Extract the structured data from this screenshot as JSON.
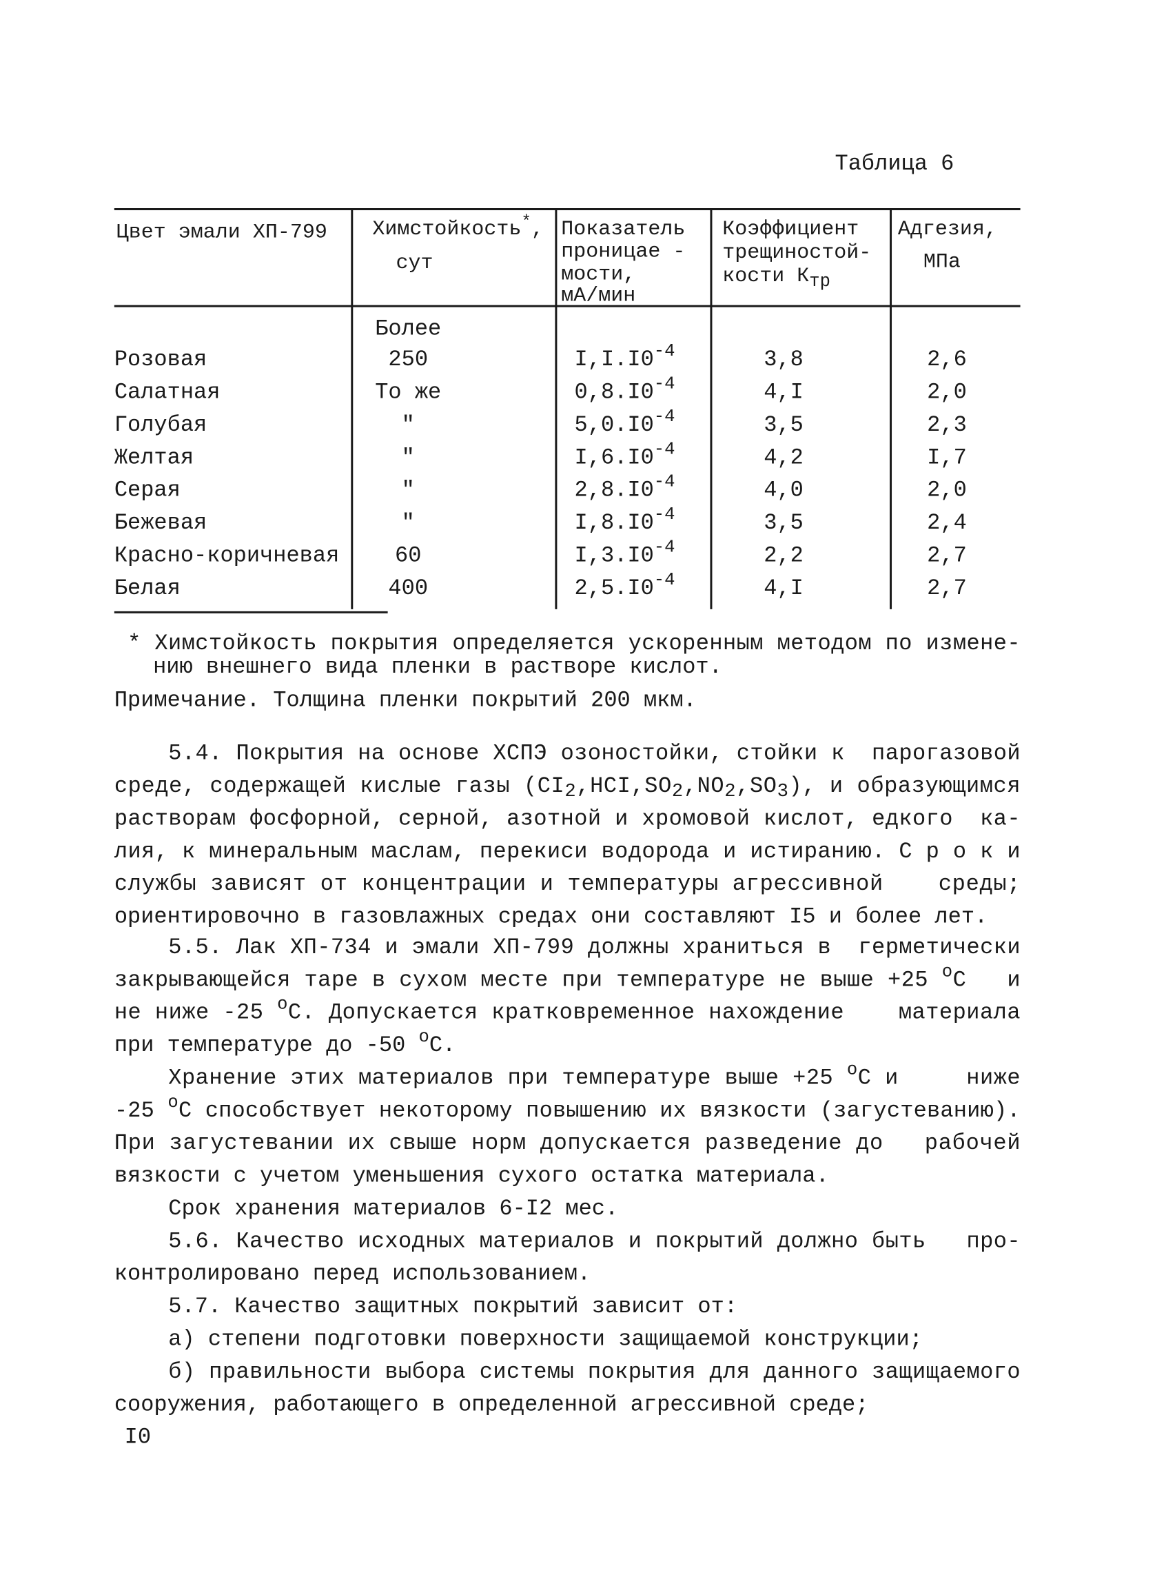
{
  "table_title": "Таблица 6",
  "table": {
    "header": [
      [
        [
          "Цвет эмали ХП-799"
        ]
      ],
      [
        [
          "Химстойкость",
          {
            "sup": "*"
          },
          ","
        ],
        [
          "сут"
        ]
      ],
      [
        [
          "Показатель"
        ],
        [
          "проницае -"
        ],
        [
          "мости,"
        ],
        [
          "мА/мин"
        ]
      ],
      [
        [
          "Коэффициент"
        ],
        [
          "трещиностой-"
        ],
        [
          "кости К",
          {
            "sub": "тр"
          }
        ]
      ],
      [
        [
          "Адгезия,"
        ],
        [
          "МПа"
        ]
      ]
    ],
    "rows": [
      [
        "Розовая",
        [
          "Более",
          "250"
        ],
        [
          "I,I.I0",
          {
            "sup": "-4"
          }
        ],
        "3,8",
        "2,6"
      ],
      [
        "Салатная",
        "То же",
        [
          "0,8.I0",
          {
            "sup": "-4"
          }
        ],
        "4,I",
        "2,0"
      ],
      [
        "Голубая",
        "\"",
        [
          "5,0.I0",
          {
            "sup": "-4"
          }
        ],
        "3,5",
        "2,3"
      ],
      [
        "Желтая",
        "\"",
        [
          "I,6.I0",
          {
            "sup": "-4"
          }
        ],
        "4,2",
        "I,7"
      ],
      [
        "Серая",
        "\"",
        [
          "2,8.I0",
          {
            "sup": "-4"
          }
        ],
        "4,0",
        "2,0"
      ],
      [
        "Бежевая",
        "\"",
        [
          "I,8.I0",
          {
            "sup": "-4"
          }
        ],
        "3,5",
        "2,4"
      ],
      [
        "Красно-коричневая",
        "60",
        [
          "I,3.I0",
          {
            "sup": "-4"
          }
        ],
        "2,2",
        "2,7"
      ],
      [
        "Белая",
        "400",
        [
          "2,5.I0",
          {
            "sup": "-4"
          }
        ],
        "4,I",
        "2,7"
      ]
    ]
  },
  "footnote": [
    "* Химстойкость покрытия определяется ускоренным методом по измене-",
    "нию внешнего вида пленки в растворе кислот."
  ],
  "note": "Примечание. Толщина пленки покрытий 200 мкм.",
  "paragraphs": [
    {
      "lines": [
        [
          "5.4. Покрытия на основе ХСПЭ озоностойки, стойки к  парогазовой"
        ],
        [
          "среде, содержащей кислые газы (CI",
          {
            "sub": "2"
          },
          ",HCI,SO",
          {
            "sub": "2"
          },
          ",NO",
          {
            "sub": "2"
          },
          ",SO",
          {
            "sub": "3"
          },
          "), и образующимся"
        ],
        [
          "растворам фосфорной, серной, азотной и хромовой кислот, едкого  ка-"
        ],
        [
          "лия, к минеральным маслам, перекиси водорода и истиранию. С р о к и"
        ],
        [
          "службы зависят от концентрации и температуры агрессивной    среды;"
        ],
        [
          "ориентировочно в газовлажных средах они составляют I5 и более лет."
        ]
      ]
    },
    {
      "lines": [
        [
          "5.5. Лак ХП-734 и эмали ХП-799 должны храниться в  герметически"
        ],
        [
          "закрывающейся таре в сухом месте при температуре не выше +25 ",
          {
            "sup": "о"
          },
          "С   и"
        ],
        [
          "не ниже -25 ",
          {
            "sup": "о"
          },
          "С. Допускается кратковременное нахождение    материала"
        ],
        [
          "при температуре до -50 ",
          {
            "sup": "о"
          },
          "С."
        ]
      ]
    },
    {
      "lines": [
        [
          "Хранение этих материалов при температуре выше +25 ",
          {
            "sup": "о"
          },
          "С и     ниже"
        ],
        [
          "-25 ",
          {
            "sup": "о"
          },
          "С способствует некоторому повышению их вязкости (загустеванию)."
        ],
        [
          "При загустевании их свыше норм допускается разведение до   рабочей"
        ],
        [
          "вязкости с учетом уменьшения сухого остатка материала."
        ]
      ]
    },
    {
      "lines": [
        [
          "Срок хранения материалов 6-I2 мес."
        ]
      ]
    },
    {
      "lines": [
        [
          "5.6. Качество исходных материалов и покрытий должно быть   про-"
        ],
        [
          "контролировано перед использованием."
        ]
      ]
    },
    {
      "lines": [
        [
          "5.7. Качество защитных покрытий зависит от:"
        ]
      ]
    },
    {
      "lines": [
        [
          "а) степени подготовки поверхности защищаемой конструкции;"
        ]
      ]
    },
    {
      "lines": [
        [
          "б) правильности выбора системы покрытия для данного защищаемого"
        ],
        [
          "сооружения, работающего в определенной агрессивной среде;"
        ]
      ]
    }
  ],
  "page_number": "I0"
}
